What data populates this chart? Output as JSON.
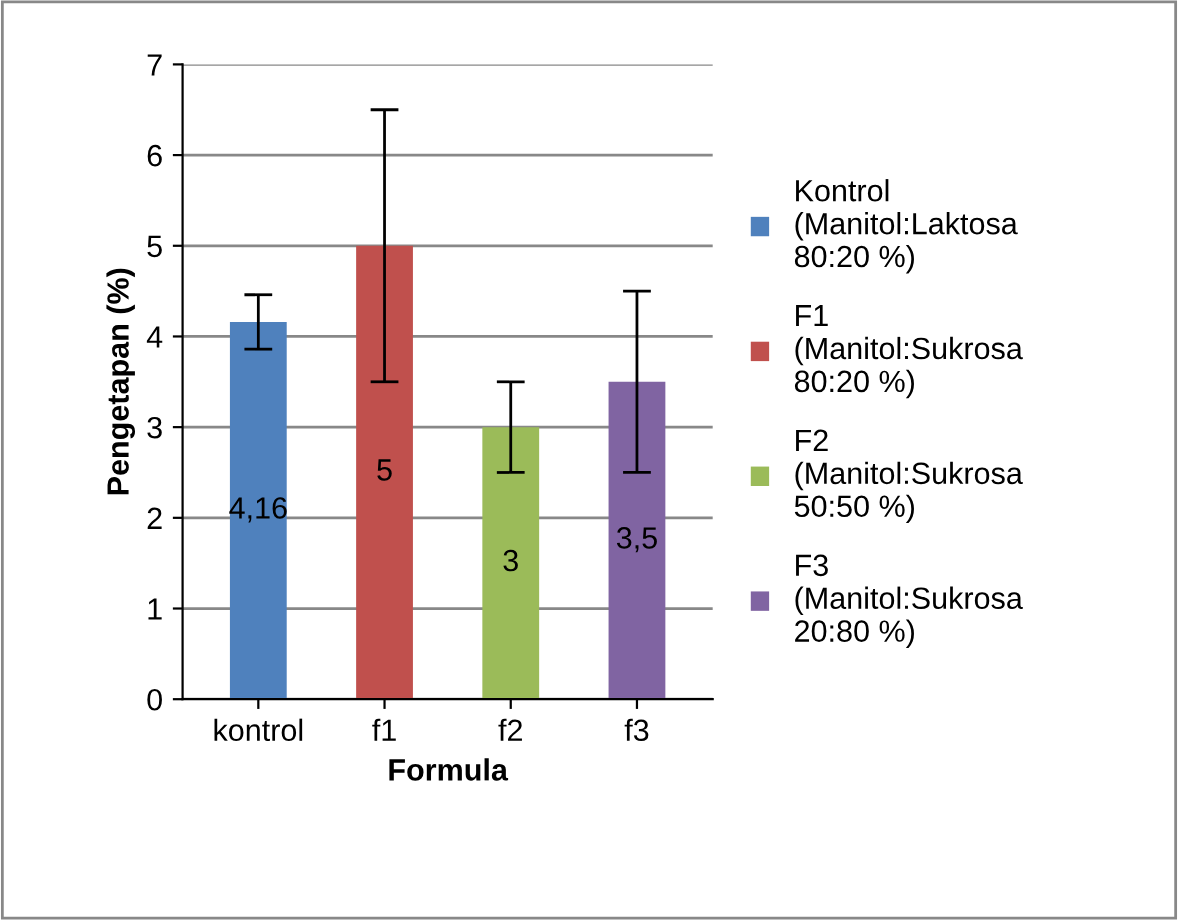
{
  "chart_data": {
    "type": "bar",
    "xlabel": "Formula",
    "ylabel": "Pengetapan (%)",
    "categories": [
      "kontrol",
      "f1",
      "f2",
      "f3"
    ],
    "series": [
      {
        "name": "Kontrol\n(Manitol:Laktosa\n80:20 %)",
        "color": "#4f81bd",
        "values": [
          4.16,
          null,
          null,
          null
        ],
        "errors": [
          0.3,
          null,
          null,
          null
        ],
        "value_labels": [
          "4,16",
          null,
          null,
          null
        ]
      },
      {
        "name": "F1\n(Manitol:Sukrosa\n80:20 %)",
        "color": "#c0504d",
        "values": [
          null,
          5,
          null,
          null
        ],
        "errors": [
          null,
          1.5,
          null,
          null
        ],
        "value_labels": [
          null,
          "5",
          null,
          null
        ]
      },
      {
        "name": "F2\n(Manitol:Sukrosa\n50:50 %)",
        "color": "#9bbb59",
        "values": [
          null,
          null,
          3,
          null
        ],
        "errors": [
          null,
          null,
          0.5,
          null
        ],
        "value_labels": [
          null,
          null,
          "3",
          null
        ]
      },
      {
        "name": "F3\n(Manitol:Sukrosa\n20:80 %)",
        "color": "#8064a2",
        "values": [
          null,
          null,
          null,
          3.5
        ],
        "errors": [
          null,
          null,
          null,
          1
        ],
        "value_labels": [
          null,
          null,
          null,
          "3,5"
        ]
      }
    ],
    "ylim": [
      0,
      7
    ],
    "yticks": [
      0,
      1,
      2,
      3,
      4,
      5,
      6,
      7
    ],
    "grid": "y",
    "legend": "right"
  }
}
